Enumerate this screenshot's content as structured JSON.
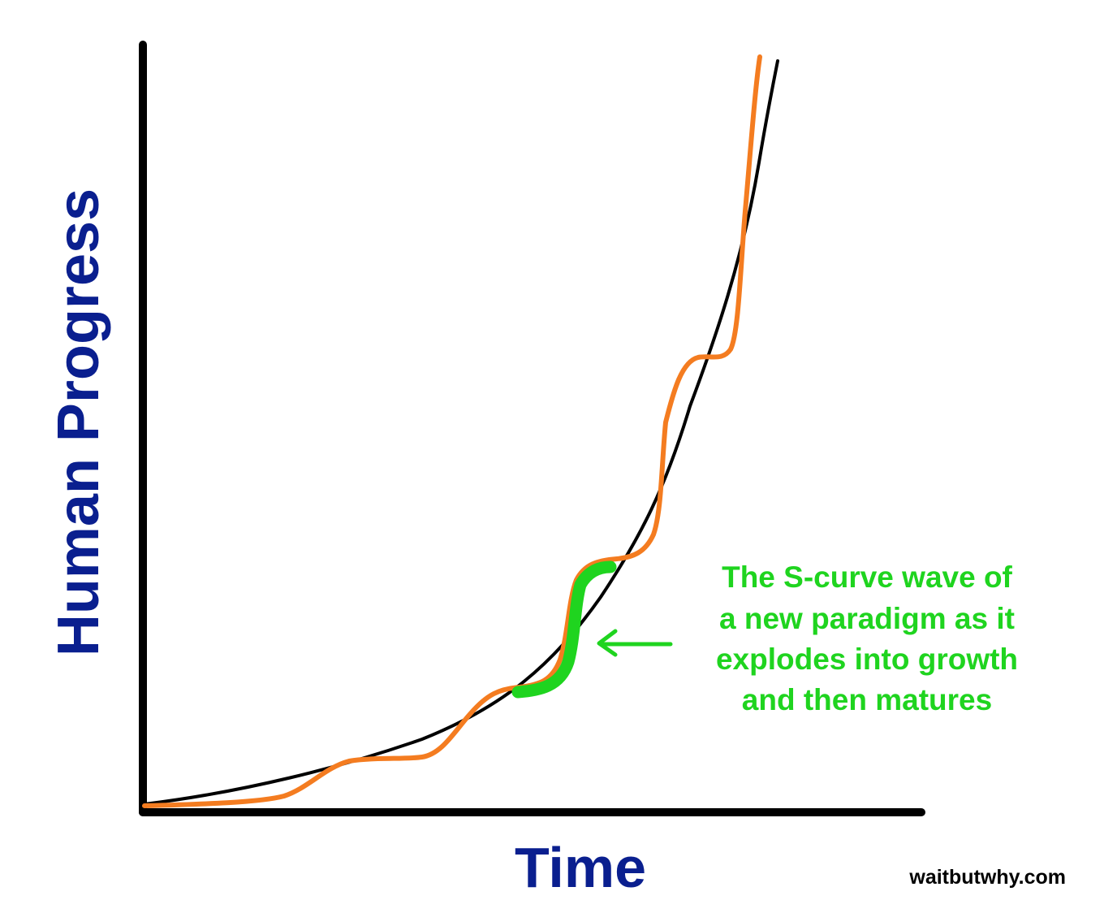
{
  "y_axis_label": "Human Progress",
  "x_axis_label": "Time",
  "annotation": {
    "lines": [
      "The S-curve wave of",
      "a new paradigm as it",
      "explodes into growth",
      "and then matures"
    ]
  },
  "credit": "waitbutwhy.com",
  "colors": {
    "axis_labels": "#0a1f8f",
    "exponential_curve": "#000000",
    "paradigm_curve": "#f47c20",
    "highlight": "#1fd41f"
  }
}
